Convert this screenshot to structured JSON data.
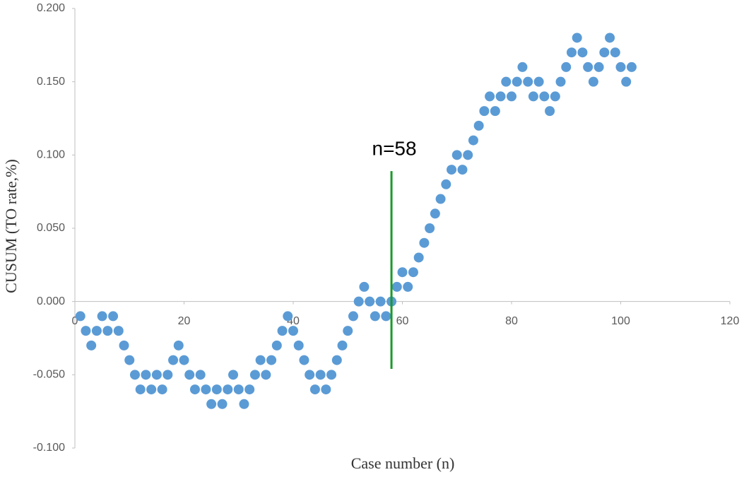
{
  "chart_data": {
    "type": "scatter",
    "x_label": "Case number (n)",
    "y_label": "CUSUM (TO rate,%)",
    "color": "#5b9bd5",
    "x": [
      1,
      2,
      3,
      4,
      5,
      6,
      7,
      8,
      9,
      10,
      11,
      12,
      13,
      14,
      15,
      16,
      17,
      18,
      19,
      20,
      21,
      22,
      23,
      24,
      25,
      26,
      27,
      28,
      29,
      30,
      31,
      32,
      33,
      34,
      35,
      36,
      37,
      38,
      39,
      40,
      41,
      42,
      43,
      44,
      45,
      46,
      47,
      48,
      49,
      50,
      51,
      52,
      53,
      54,
      55,
      56,
      57,
      58,
      59,
      60,
      61,
      62,
      63,
      64,
      65,
      66,
      67,
      68,
      69,
      70,
      71,
      72,
      73,
      74,
      75,
      76,
      77,
      78,
      79,
      80,
      81,
      82,
      83,
      84,
      85,
      86,
      87,
      88,
      89,
      90,
      91,
      92,
      93,
      94,
      95,
      96,
      97,
      98,
      99,
      100,
      101,
      102
    ],
    "values": [
      -0.01,
      -0.02,
      -0.03,
      -0.02,
      -0.01,
      -0.02,
      -0.01,
      -0.02,
      -0.03,
      -0.04,
      -0.05,
      -0.06,
      -0.05,
      -0.06,
      -0.05,
      -0.06,
      -0.05,
      -0.04,
      -0.03,
      -0.04,
      -0.05,
      -0.06,
      -0.05,
      -0.06,
      -0.07,
      -0.06,
      -0.07,
      -0.06,
      -0.05,
      -0.06,
      -0.07,
      -0.06,
      -0.05,
      -0.04,
      -0.05,
      -0.04,
      -0.03,
      -0.02,
      -0.01,
      -0.02,
      -0.03,
      -0.04,
      -0.05,
      -0.06,
      -0.05,
      -0.06,
      -0.05,
      -0.04,
      -0.03,
      -0.02,
      -0.01,
      0,
      0.01,
      0,
      -0.01,
      0,
      -0.01,
      0,
      0.01,
      0.02,
      0.01,
      0.02,
      0.03,
      0.04,
      0.05,
      0.06,
      0.07,
      0.08,
      0.09,
      0.1,
      0.09,
      0.1,
      0.11,
      0.12,
      0.13,
      0.14,
      0.13,
      0.14,
      0.15,
      0.14,
      0.15,
      0.16,
      0.15,
      0.14,
      0.15,
      0.14,
      0.13,
      0.14,
      0.15,
      0.16,
      0.17,
      0.18,
      0.17,
      0.16,
      0.15,
      0.16,
      0.17,
      0.18,
      0.17,
      0.16,
      0.15,
      0.16
    ],
    "xlim": [
      0,
      120
    ],
    "xticks": [
      0,
      20,
      40,
      60,
      80,
      100,
      120
    ],
    "ylim": [
      -0.1,
      0.2
    ],
    "yticks": [
      {
        "value": -0.1,
        "label": "-0.100"
      },
      {
        "value": -0.05,
        "label": "-0.050"
      },
      {
        "value": 0,
        "label": "0.000"
      },
      {
        "value": 0.05,
        "label": "0.050"
      },
      {
        "value": 0.1,
        "label": "0.100"
      },
      {
        "value": 0.15,
        "label": "0.150"
      },
      {
        "value": 0.2,
        "label": "0.200"
      }
    ],
    "grid": false,
    "annotation": {
      "text": "n=58",
      "x": 58,
      "y0": -0.046,
      "y1": 0.089,
      "color": "#1a9a2a"
    }
  }
}
